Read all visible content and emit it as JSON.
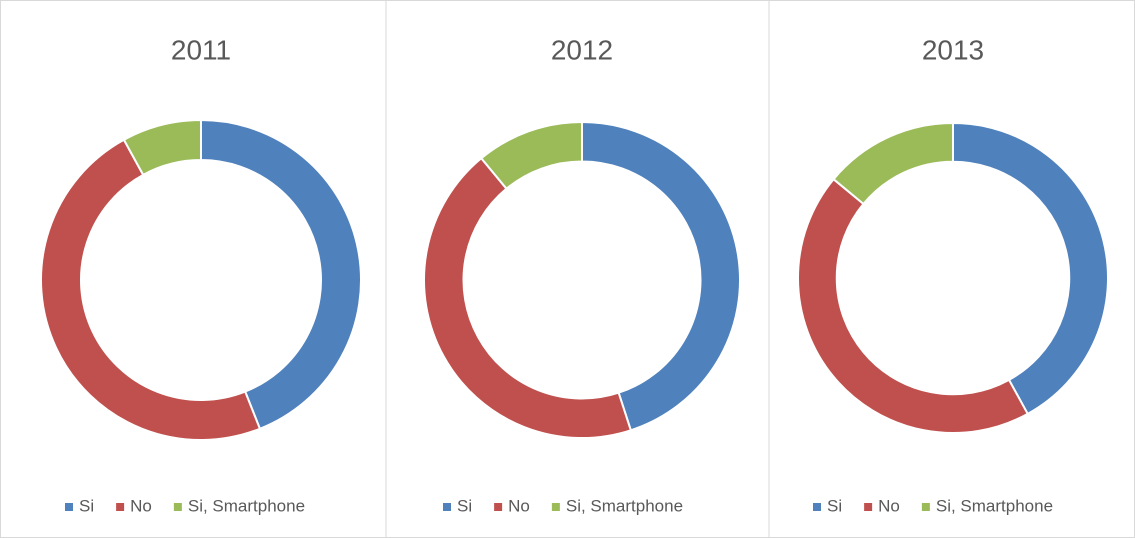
{
  "chart_data": [
    {
      "type": "donut",
      "title": "2011",
      "categories": [
        "Si",
        "No",
        "Si, Smartphone"
      ],
      "values": [
        44,
        48,
        8
      ],
      "colors": [
        "#4f81bd",
        "#c0504d",
        "#9bbb59"
      ],
      "legend": "bottom"
    },
    {
      "type": "donut",
      "title": "2012",
      "categories": [
        "Si",
        "No",
        "Si, Smartphone"
      ],
      "values": [
        45,
        44,
        11
      ],
      "colors": [
        "#4f81bd",
        "#c0504d",
        "#9bbb59"
      ],
      "legend": "bottom"
    },
    {
      "type": "donut",
      "title": "2013",
      "categories": [
        "Si",
        "No",
        "Si, Smartphone"
      ],
      "values": [
        42,
        44,
        14
      ],
      "colors": [
        "#4f81bd",
        "#c0504d",
        "#9bbb59"
      ],
      "legend": "bottom"
    }
  ]
}
